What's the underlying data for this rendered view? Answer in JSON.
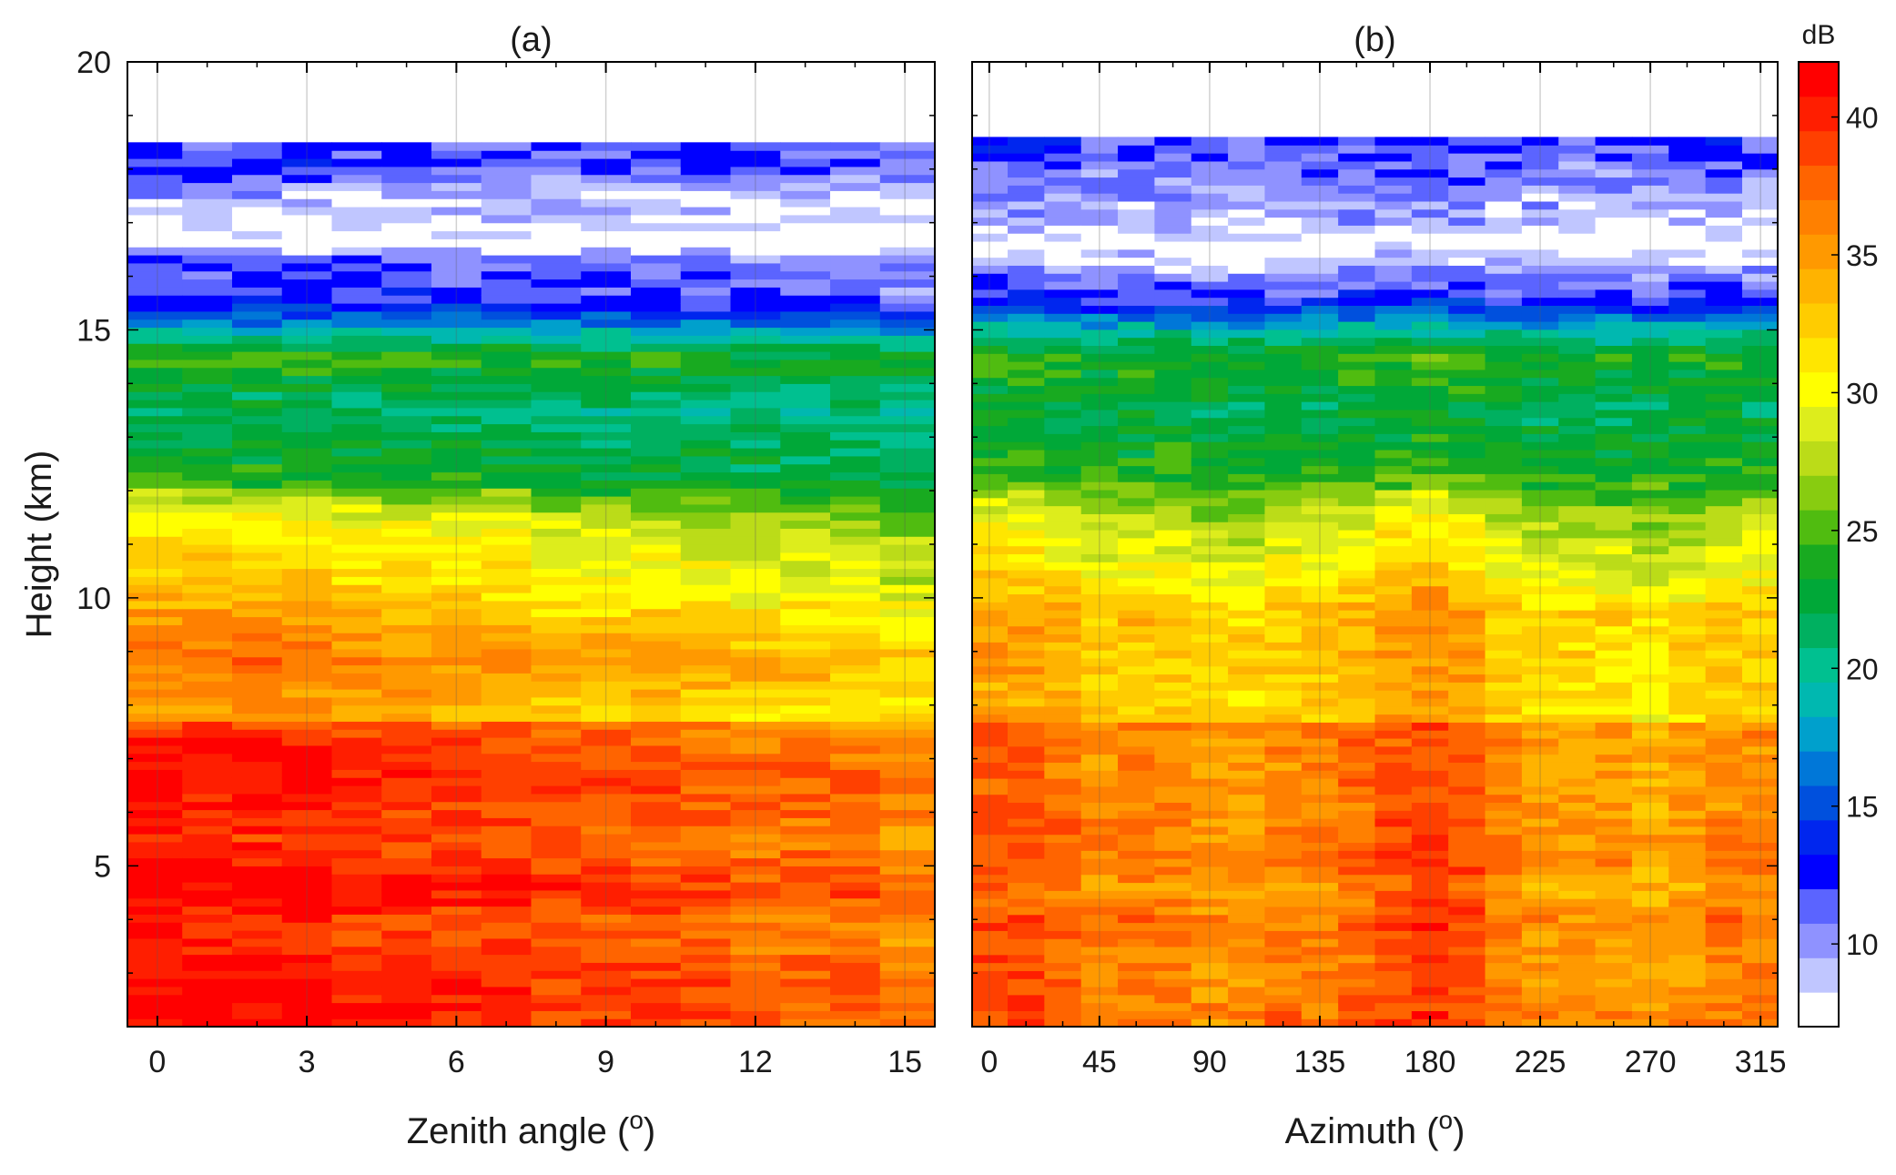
{
  "chart_data": [
    {
      "type": "heatmap",
      "panel_label": "(a)",
      "xlabel": "Zenith angle",
      "xlabel_unit": "o",
      "ylabel": "Height (km)",
      "xlim": [
        -0.6,
        15.6
      ],
      "ylim": [
        2,
        20
      ],
      "xticks": [
        "0",
        "3",
        "6",
        "9",
        "12",
        "15"
      ],
      "xtick_values": [
        0,
        3,
        6,
        9,
        12,
        15
      ],
      "yticks": [
        "5",
        "10",
        "15",
        "20"
      ],
      "ytick_values": [
        5,
        10,
        15,
        20
      ],
      "x_columns": [
        0,
        1,
        2,
        3,
        4,
        5,
        6,
        7,
        8,
        9,
        10,
        11,
        12,
        13,
        14,
        15
      ],
      "grid": true,
      "profile_km_db": [
        [
          2.0,
          40
        ],
        [
          3.0,
          40
        ],
        [
          4.0,
          38
        ],
        [
          4.5,
          41
        ],
        [
          5.5,
          38
        ],
        [
          6.5,
          40
        ],
        [
          7.6,
          38
        ],
        [
          7.8,
          33
        ],
        [
          8.8,
          36
        ],
        [
          9.7,
          33
        ],
        [
          10.5,
          31
        ],
        [
          11.5,
          29
        ],
        [
          12.3,
          23
        ],
        [
          13.5,
          21
        ],
        [
          14.5,
          24
        ],
        [
          15.1,
          17
        ],
        [
          15.6,
          12
        ],
        [
          16.3,
          11
        ],
        [
          16.6,
          7
        ],
        [
          17.0,
          8
        ],
        [
          17.5,
          9
        ],
        [
          18.0,
          12
        ],
        [
          18.5,
          11
        ]
      ],
      "column_offset_db": [
        1.5,
        1.5,
        1.5,
        1.5,
        0.5,
        0.5,
        0,
        0,
        -1,
        -1,
        -1,
        -1.5,
        -2,
        -2,
        -2,
        -3
      ],
      "top_of_data_km": 18.5
    },
    {
      "type": "heatmap",
      "panel_label": "(b)",
      "xlabel": "Azimuth",
      "xlabel_unit": "o",
      "xlim": [
        -7,
        322
      ],
      "ylim": [
        2,
        20
      ],
      "xticks": [
        "0",
        "45",
        "90",
        "135",
        "180",
        "225",
        "270",
        "315"
      ],
      "xtick_values": [
        0,
        45,
        90,
        135,
        180,
        225,
        270,
        315
      ],
      "x_columns": [
        0,
        15,
        30,
        45,
        60,
        75,
        90,
        105,
        120,
        135,
        150,
        165,
        180,
        195,
        210,
        225,
        240,
        255,
        270,
        285,
        300,
        315
      ],
      "grid": true,
      "profile_km_db": [
        [
          2.0,
          37
        ],
        [
          3.0,
          36
        ],
        [
          4.0,
          37
        ],
        [
          4.5,
          35
        ],
        [
          5.0,
          37
        ],
        [
          6.0,
          36
        ],
        [
          7.0,
          36
        ],
        [
          7.6,
          36
        ],
        [
          7.8,
          32
        ],
        [
          8.8,
          33
        ],
        [
          9.7,
          33
        ],
        [
          10.5,
          30
        ],
        [
          11.5,
          28
        ],
        [
          12.3,
          24
        ],
        [
          13.5,
          22
        ],
        [
          14.5,
          24
        ],
        [
          15.1,
          18
        ],
        [
          15.6,
          12
        ],
        [
          16.3,
          9
        ],
        [
          16.6,
          7
        ],
        [
          17.0,
          9
        ],
        [
          17.5,
          10
        ],
        [
          18.0,
          11
        ],
        [
          18.6,
          12
        ]
      ],
      "column_offset_db": [
        2,
        2,
        1,
        0,
        0,
        0,
        -1,
        -1,
        0,
        0,
        1,
        2,
        3,
        2,
        0,
        -1,
        -1,
        -1,
        -2,
        -1,
        0,
        0
      ],
      "top_of_data_km": 18.6
    }
  ],
  "colorbar": {
    "label": "dB",
    "ticks": [
      "10",
      "15",
      "20",
      "25",
      "30",
      "35",
      "40"
    ],
    "tick_values": [
      10,
      15,
      20,
      25,
      30,
      35,
      40
    ],
    "range": [
      7,
      42
    ],
    "colors": [
      "#ffffff",
      "#c0c6ff",
      "#8f92ff",
      "#5b64ff",
      "#0000ff",
      "#0026ee",
      "#0050dd",
      "#0077d8",
      "#00a0cc",
      "#00b8b0",
      "#00c090",
      "#00b060",
      "#00a838",
      "#18aa20",
      "#50bc10",
      "#88cc10",
      "#bbdc18",
      "#dded1c",
      "#ffff00",
      "#ffe600",
      "#ffcc00",
      "#ffb300",
      "#ff9900",
      "#ff8000",
      "#ff6400",
      "#ff4000",
      "#ff1e00",
      "#ff0000"
    ]
  }
}
